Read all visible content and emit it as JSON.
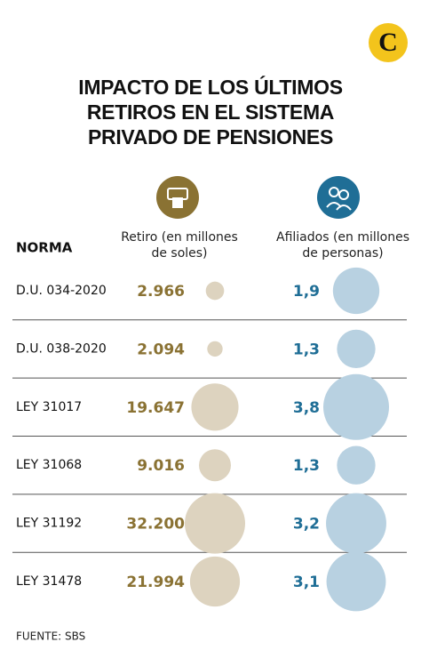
{
  "chart_data": {
    "type": "bubble-table",
    "logo": "C",
    "title": "IMPACTO DE LOS ÚLTIMOS RETIROS EN EL SISTEMA PRIVADO DE PENSIONES",
    "category_label": "NORMA",
    "categories": [
      "D.U. 034-2020",
      "D.U. 038-2020",
      "LEY 31017",
      "LEY 31068",
      "LEY 31192",
      "LEY 31478"
    ],
    "series": [
      {
        "name": "Retiro (en millones de soles)",
        "color": "#8a7233",
        "bubble_color": "#ddd3bf",
        "values": [
          2966,
          2094,
          19647,
          9016,
          32200,
          21994
        ],
        "value_labels": [
          "2.966",
          "2.094",
          "19.647",
          "9.016",
          "32.200",
          "21.994"
        ]
      },
      {
        "name": "Afiliados (en millones de personas)",
        "color": "#1f6e96",
        "bubble_color": "#b8d1e1",
        "values": [
          1.9,
          1.3,
          3.8,
          1.3,
          3.2,
          3.1
        ],
        "value_labels": [
          "1,9",
          "1,3",
          "3,8",
          "1,3",
          "3,2",
          "3,1"
        ]
      }
    ],
    "source": "FUENTE: SBS"
  }
}
